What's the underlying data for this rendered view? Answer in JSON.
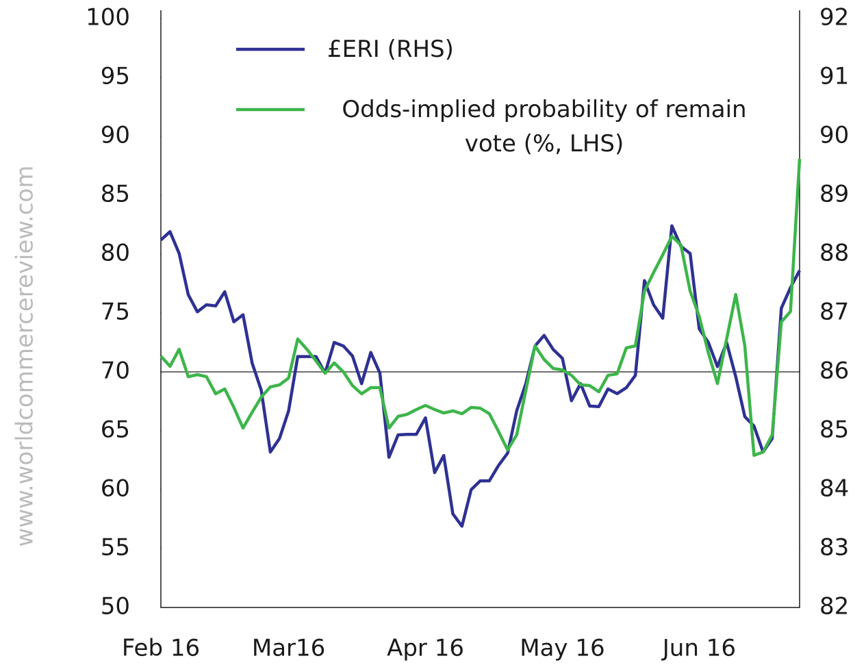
{
  "watermark": "www.worldcommercereview.com",
  "chart_data": {
    "type": "line",
    "categories": [
      "Feb 16",
      null,
      null,
      null,
      null,
      null,
      null,
      null,
      null,
      null,
      null,
      null,
      null,
      null,
      "Mar16",
      null,
      null,
      null,
      null,
      null,
      null,
      null,
      null,
      null,
      null,
      null,
      null,
      null,
      null,
      "Apr 16",
      null,
      null,
      null,
      null,
      null,
      null,
      null,
      null,
      null,
      null,
      null,
      null,
      null,
      null,
      "May 16",
      null,
      null,
      null,
      null,
      null,
      null,
      null,
      null,
      null,
      null,
      null,
      null,
      null,
      null,
      "Jun 16",
      null,
      null,
      null,
      null,
      null,
      null,
      null,
      null,
      null,
      null,
      null
    ],
    "series": [
      {
        "name": "£ERI (RHS)",
        "color": "#2e3192",
        "axis": "y2",
        "values": [
          88.24,
          88.38,
          88.01,
          87.31,
          87.02,
          87.14,
          87.12,
          87.36,
          86.85,
          86.97,
          86.15,
          85.69,
          84.64,
          84.87,
          85.34,
          86.26,
          86.26,
          86.26,
          85.98,
          86.5,
          86.44,
          86.27,
          85.8,
          86.33,
          85.98,
          84.55,
          84.93,
          84.94,
          84.94,
          85.22,
          84.29,
          84.58,
          83.59,
          83.38,
          84.0,
          84.15,
          84.15,
          84.41,
          84.62,
          85.34,
          85.8,
          86.44,
          86.62,
          86.38,
          86.23,
          85.51,
          85.8,
          85.42,
          85.41,
          85.71,
          85.63,
          85.73,
          85.94,
          87.55,
          87.14,
          86.91,
          88.48,
          88.13,
          88.01,
          86.73,
          86.5,
          86.09,
          86.5,
          85.92,
          85.24,
          85.08,
          84.64,
          84.87,
          87.08,
          87.43,
          87.72
        ]
      },
      {
        "name": "Odds-implied probability of remain vote (%, LHS)",
        "color": "#3db54a",
        "values": [
          71.34,
          70.47,
          71.92,
          69.59,
          69.77,
          69.59,
          68.14,
          68.55,
          66.98,
          65.23,
          66.57,
          67.85,
          68.72,
          68.9,
          69.48,
          72.79,
          71.92,
          70.93,
          69.88,
          70.76,
          70.0,
          68.84,
          68.14,
          68.66,
          68.66,
          65.23,
          66.22,
          66.4,
          66.8,
          67.15,
          66.8,
          66.51,
          66.69,
          66.45,
          66.98,
          66.92,
          66.45,
          64.94,
          63.37,
          64.65,
          68.43,
          72.21,
          71.05,
          70.29,
          70.17,
          69.71,
          68.9,
          68.84,
          68.31,
          69.71,
          69.83,
          72.03,
          72.21,
          76.86,
          78.43,
          79.94,
          81.51,
          80.76,
          76.86,
          74.71,
          71.63,
          69.01,
          72.79,
          76.57,
          72.21,
          62.91,
          63.2,
          64.65,
          74.24,
          75.12,
          88.08
        ]
      }
    ],
    "ylim": [
      50,
      100
    ],
    "yticks": [
      50,
      55,
      60,
      65,
      70,
      75,
      80,
      85,
      90,
      95,
      100
    ],
    "y2lim": [
      82,
      92
    ],
    "y2ticks": [
      82,
      83,
      84,
      85,
      86,
      87,
      88,
      89,
      90,
      91,
      92
    ],
    "hline": 70,
    "grid": false
  }
}
